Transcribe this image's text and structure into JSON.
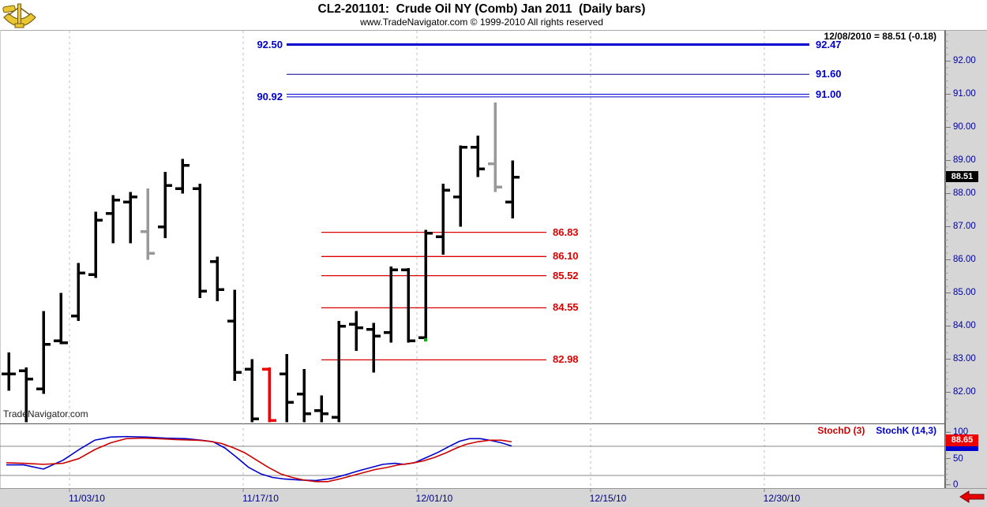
{
  "header": {
    "title": "CL2-201101:  Crude Oil NY (Comb) Jan 2011  (Daily bars)",
    "subtitle": "www.TradeNavigator.com © 1999-2010 All rights reserved",
    "quote_info": "12/08/2010 = 88.51 (-0.18)"
  },
  "watermark": "TradeNavigator.com",
  "colors": {
    "blue_line": "#0000cc",
    "dark_blue_line": "#00008b",
    "red_line": "#dd0000",
    "axis_label": "#000099",
    "bar_black": "#000000",
    "bar_gray": "#999999",
    "bar_red": "#ee0000",
    "stoch_k": "#0000cc",
    "stoch_d": "#cc0000",
    "signal_green": "#00b800",
    "highlight_price_bg": "#000000",
    "highlight_stoch_bg": "#ee0000"
  },
  "chart_data": {
    "type": "ohlc-bar",
    "title": "CL2-201101:  Crude Oil NY (Comb) Jan 2011  (Daily bars)",
    "price_axis": {
      "ticks": [
        "92.00",
        "91.00",
        "90.00",
        "89.00",
        "88.00",
        "87.00",
        "86.00",
        "85.00",
        "84.00",
        "83.00",
        "82.00"
      ],
      "min": 81.0,
      "max": 92.9,
      "highlight_label": "88.51"
    },
    "x_axis": {
      "labels": [
        "11/03/10",
        "11/17/10",
        "12/01/10",
        "12/15/10",
        "12/30/10"
      ]
    },
    "levels_blue": [
      {
        "price": 92.5,
        "left_label": "92.50",
        "right_label": "92.47",
        "thickness": 3
      },
      {
        "price": 91.6,
        "right_label": "91.60",
        "thickness": 1,
        "dark": true
      },
      {
        "price": 91.0,
        "right_label": "91.00",
        "thickness": 1
      },
      {
        "price": 90.92,
        "left_label": "90.92",
        "thickness": 1
      }
    ],
    "levels_red": [
      {
        "price": 86.83,
        "label": "86.83"
      },
      {
        "price": 86.1,
        "label": "86.10"
      },
      {
        "price": 85.52,
        "label": "85.52"
      },
      {
        "price": 84.55,
        "label": "84.55"
      },
      {
        "price": 82.98,
        "label": "82.98"
      }
    ],
    "bars": [
      {
        "o": 82.55,
        "h": 83.2,
        "l": 82.05,
        "c": 82.55
      },
      {
        "o": 82.65,
        "h": 82.75,
        "l": 81.1,
        "c": 82.4
      },
      {
        "o": 82.1,
        "h": 84.45,
        "l": 81.95,
        "c": 83.45
      },
      {
        "o": 83.55,
        "h": 85.0,
        "l": 83.45,
        "c": 83.5
      },
      {
        "o": 84.3,
        "h": 85.9,
        "l": 84.15,
        "c": 85.6
      },
      {
        "o": 85.55,
        "h": 87.45,
        "l": 85.45,
        "c": 87.2
      },
      {
        "o": 87.4,
        "h": 87.95,
        "l": 86.5,
        "c": 87.8
      },
      {
        "o": 87.75,
        "h": 88.05,
        "l": 86.5,
        "c": 87.9
      },
      {
        "o": 86.85,
        "h": 88.15,
        "l": 86.0,
        "c": 86.2,
        "color": "gray"
      },
      {
        "o": 87.0,
        "h": 88.65,
        "l": 86.65,
        "c": 88.25
      },
      {
        "o": 88.15,
        "h": 89.05,
        "l": 88.0,
        "c": 88.85
      },
      {
        "o": 88.15,
        "h": 88.3,
        "l": 84.85,
        "c": 85.05
      },
      {
        "o": 85.95,
        "h": 86.1,
        "l": 84.75,
        "c": 85.1
      },
      {
        "o": 84.15,
        "h": 85.1,
        "l": 82.35,
        "c": 82.6
      },
      {
        "o": 82.7,
        "h": 83.0,
        "l": 81.1,
        "c": 81.2
      },
      {
        "o": 82.7,
        "h": 82.75,
        "l": 81.1,
        "c": 81.15,
        "color": "red"
      },
      {
        "o": 82.55,
        "h": 83.15,
        "l": 81.1,
        "c": 81.7
      },
      {
        "o": 81.95,
        "h": 82.7,
        "l": 81.1,
        "c": 81.35
      },
      {
        "o": 81.45,
        "h": 81.9,
        "l": 81.1,
        "c": 81.35
      },
      {
        "o": 81.25,
        "h": 84.15,
        "l": 81.1,
        "c": 84.0
      },
      {
        "o": 84.05,
        "h": 84.45,
        "l": 83.25,
        "c": 83.95
      },
      {
        "o": 83.9,
        "h": 84.1,
        "l": 82.6,
        "c": 83.7
      },
      {
        "o": 83.8,
        "h": 85.8,
        "l": 83.5,
        "c": 85.7
      },
      {
        "o": 85.7,
        "h": 85.75,
        "l": 83.5,
        "c": 83.55
      },
      {
        "o": 83.65,
        "h": 86.9,
        "l": 83.55,
        "c": 86.8
      },
      {
        "o": 86.7,
        "h": 88.3,
        "l": 86.15,
        "c": 88.1
      },
      {
        "o": 87.9,
        "h": 89.45,
        "l": 87.0,
        "c": 89.4
      },
      {
        "o": 89.4,
        "h": 89.75,
        "l": 88.5,
        "c": 88.75
      },
      {
        "o": 88.9,
        "h": 90.75,
        "l": 88.05,
        "c": 88.2,
        "color": "gray"
      },
      {
        "o": 87.75,
        "h": 89.0,
        "l": 87.25,
        "c": 88.5
      }
    ],
    "stochastic": {
      "d_label": "StochD (3)",
      "k_label": "StochK (14,3)",
      "axis_ticks": [
        "100",
        "50",
        "0"
      ],
      "highlight_label": "88.65",
      "k": [
        [
          8,
          38
        ],
        [
          30,
          38
        ],
        [
          55,
          30
        ],
        [
          80,
          47
        ],
        [
          100,
          67
        ],
        [
          120,
          85
        ],
        [
          140,
          91
        ],
        [
          160,
          92
        ],
        [
          185,
          91
        ],
        [
          210,
          89
        ],
        [
          235,
          88
        ],
        [
          255,
          85
        ],
        [
          270,
          82
        ],
        [
          285,
          70
        ],
        [
          300,
          52
        ],
        [
          315,
          33
        ],
        [
          330,
          21
        ],
        [
          345,
          14
        ],
        [
          360,
          11
        ],
        [
          380,
          9
        ],
        [
          400,
          8
        ],
        [
          420,
          12
        ],
        [
          435,
          18
        ],
        [
          455,
          27
        ],
        [
          470,
          33
        ],
        [
          485,
          39
        ],
        [
          500,
          41
        ],
        [
          512,
          39
        ],
        [
          525,
          42
        ],
        [
          540,
          52
        ],
        [
          555,
          62
        ],
        [
          570,
          74
        ],
        [
          582,
          83
        ],
        [
          595,
          88
        ],
        [
          608,
          88
        ],
        [
          620,
          85
        ],
        [
          635,
          80
        ],
        [
          648,
          74
        ]
      ],
      "d": [
        [
          8,
          42
        ],
        [
          30,
          41
        ],
        [
          55,
          39
        ],
        [
          80,
          41
        ],
        [
          100,
          50
        ],
        [
          120,
          67
        ],
        [
          140,
          80
        ],
        [
          160,
          88
        ],
        [
          180,
          89
        ],
        [
          200,
          88
        ],
        [
          225,
          86
        ],
        [
          250,
          85
        ],
        [
          265,
          83
        ],
        [
          280,
          79
        ],
        [
          295,
          71
        ],
        [
          310,
          61
        ],
        [
          325,
          47
        ],
        [
          340,
          33
        ],
        [
          355,
          21
        ],
        [
          370,
          14
        ],
        [
          385,
          9
        ],
        [
          400,
          6
        ],
        [
          415,
          6
        ],
        [
          430,
          11
        ],
        [
          445,
          17
        ],
        [
          460,
          23
        ],
        [
          475,
          29
        ],
        [
          490,
          33
        ],
        [
          505,
          38
        ],
        [
          520,
          41
        ],
        [
          535,
          45
        ],
        [
          550,
          52
        ],
        [
          565,
          61
        ],
        [
          578,
          70
        ],
        [
          590,
          77
        ],
        [
          605,
          82
        ],
        [
          620,
          85
        ],
        [
          635,
          85
        ],
        [
          648,
          82
        ]
      ]
    }
  }
}
